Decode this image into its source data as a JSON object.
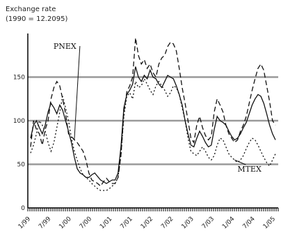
{
  "chart_data": {
    "type": "line",
    "title": "Exchange rate",
    "subtitle": "(1990 = 12.2095)",
    "xlabel": "",
    "ylabel": "",
    "ylim": [
      0,
      200
    ],
    "y_ticks": [
      0,
      50,
      100,
      150
    ],
    "y_tick_labels": [
      "0",
      "50",
      "100",
      "150"
    ],
    "grid": true,
    "x_tick_labels": [
      "1/99",
      "7/99",
      "1/00",
      "7/00",
      "1/01",
      "7/01",
      "1/02",
      "7/02",
      "1/03",
      "7/03",
      "1/04",
      "7/04",
      "1/05"
    ],
    "series": [
      {
        "name": "PNEX",
        "label_anchor": 15,
        "values": [
          70,
          100,
          90,
          85,
          72,
          90,
          100,
          125,
          138,
          145,
          140,
          125,
          108,
          85,
          82,
          78,
          75,
          70,
          65,
          55,
          40,
          32,
          30,
          28,
          25,
          30,
          34,
          30,
          28,
          28,
          35,
          60,
          110,
          133,
          140,
          150,
          195,
          175,
          165,
          170,
          160,
          165,
          155,
          150,
          165,
          172,
          175,
          185,
          190,
          188,
          180,
          160,
          138,
          120,
          100,
          80,
          75,
          95,
          105,
          92,
          83,
          78,
          82,
          110,
          125,
          118,
          110,
          95,
          85,
          80,
          75,
          78,
          88,
          95,
          105,
          120,
          135,
          148,
          160,
          165,
          158,
          140,
          122,
          100,
          95
        ]
      },
      {
        "name": "MTEX",
        "label_anchor": 70,
        "values": [
          63,
          72,
          85,
          100,
          95,
          88,
          75,
          65,
          75,
          92,
          110,
          128,
          115,
          100,
          80,
          65,
          55,
          45,
          38,
          35,
          32,
          28,
          25,
          22,
          20,
          20,
          20,
          22,
          25,
          28,
          35,
          60,
          105,
          128,
          132,
          125,
          145,
          138,
          140,
          148,
          142,
          135,
          130,
          140,
          145,
          140,
          135,
          128,
          132,
          140,
          138,
          130,
          115,
          100,
          80,
          65,
          62,
          60,
          65,
          70,
          65,
          58,
          55,
          60,
          72,
          80,
          78,
          70,
          62,
          58,
          55,
          52,
          55,
          60,
          68,
          75,
          80,
          78,
          72,
          65,
          58,
          52,
          48,
          55,
          62
        ]
      },
      {
        "name": "",
        "values": [
          80,
          95,
          100,
          92,
          85,
          95,
          110,
          120,
          115,
          108,
          118,
          112,
          100,
          88,
          75,
          58,
          45,
          40,
          38,
          35,
          35,
          38,
          40,
          36,
          32,
          30,
          28,
          30,
          32,
          32,
          40,
          70,
          115,
          130,
          135,
          142,
          162,
          150,
          145,
          152,
          148,
          158,
          150,
          148,
          142,
          138,
          145,
          152,
          150,
          148,
          140,
          130,
          118,
          100,
          85,
          72,
          70,
          80,
          88,
          82,
          75,
          70,
          72,
          90,
          105,
          100,
          98,
          95,
          88,
          82,
          78,
          80,
          85,
          92,
          98,
          108,
          118,
          125,
          130,
          128,
          120,
          108,
          95,
          85,
          78
        ]
      }
    ]
  }
}
